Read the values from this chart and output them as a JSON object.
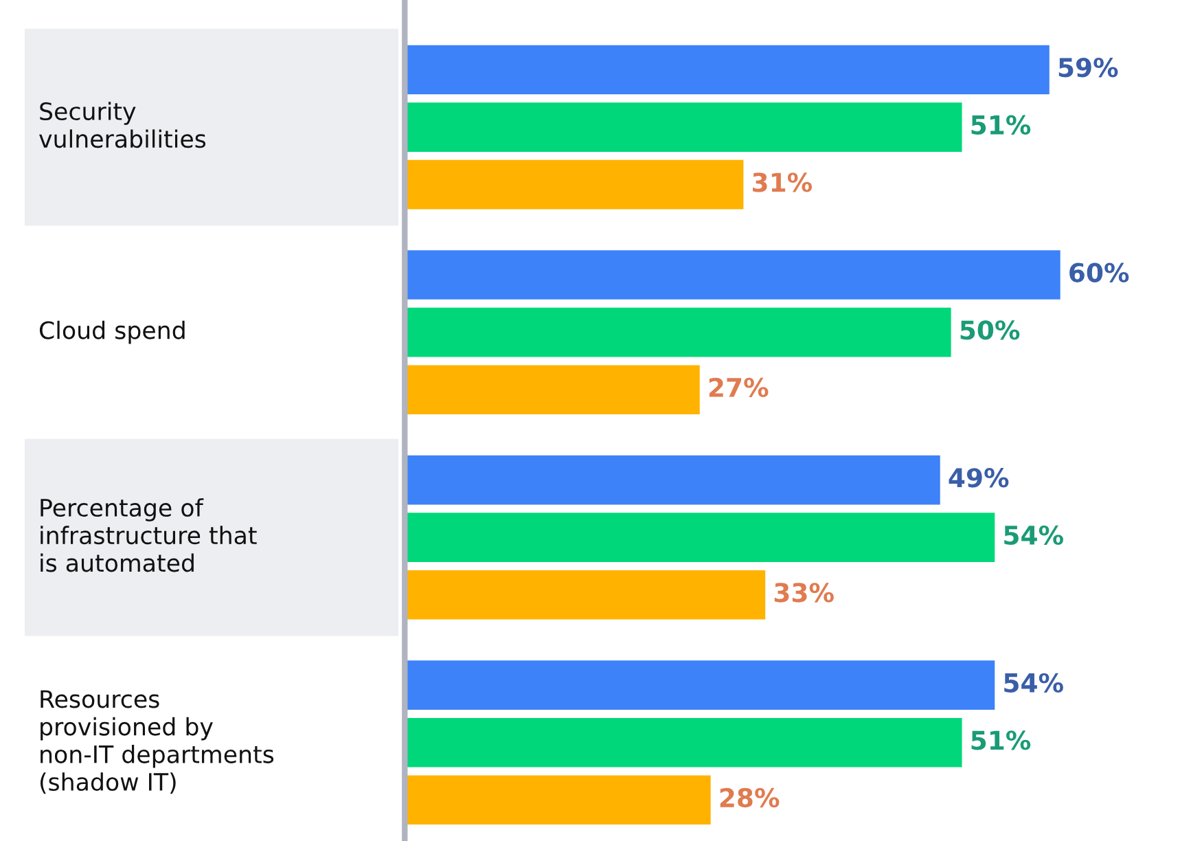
{
  "chart_data": {
    "type": "bar",
    "orientation": "horizontal",
    "categories": [
      "Security\nvulnerabilities",
      "Cloud spend",
      "Percentage of\ninfrastructure that\nis automated",
      "Resources\nprovisioned by\nnon-IT departments\n(shadow IT)"
    ],
    "series": [
      {
        "color": "#3d82f8",
        "values": [
          59,
          60,
          49,
          54
        ],
        "value_labels": [
          "59%",
          "60%",
          "49%",
          "54%"
        ]
      },
      {
        "color": "#00d77a",
        "values": [
          51,
          50,
          54,
          51
        ],
        "value_labels": [
          "51%",
          "50%",
          "54%",
          "51%"
        ]
      },
      {
        "color": "#ffb300",
        "values": [
          31,
          27,
          33,
          28
        ],
        "value_labels": [
          "31%",
          "27%",
          "33%",
          "28%"
        ]
      }
    ]
  }
}
